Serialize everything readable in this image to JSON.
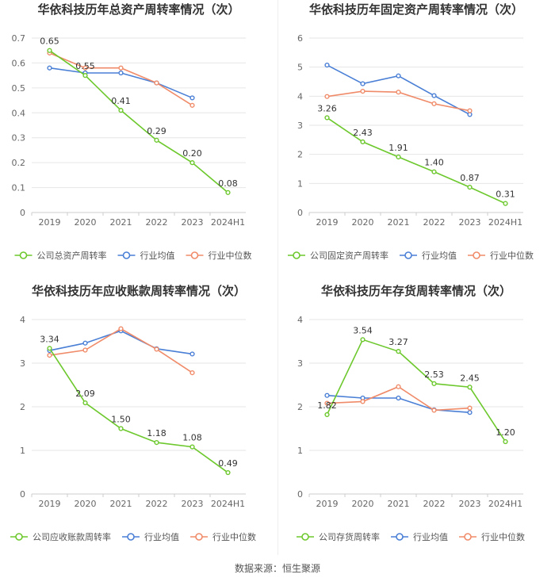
{
  "colors": {
    "company": "#6cc82c",
    "avg": "#4a7fd6",
    "median": "#f08b69",
    "grid": "#e6e6e6",
    "axis_text": "#666666",
    "title": "#333333"
  },
  "source": "数据来源：恒生聚源",
  "chart_data": [
    {
      "type": "line",
      "title": "华依科技历年总资产周转率情况（次）",
      "categories": [
        "2019",
        "2020",
        "2021",
        "2022",
        "2023",
        "2024H1"
      ],
      "ylim": [
        0,
        0.7
      ],
      "yticks": [
        "0",
        "0.1",
        "0.2",
        "0.3",
        "0.4",
        "0.5",
        "0.6",
        "0.7"
      ],
      "legend_position": "bottom",
      "grid": true,
      "series": [
        {
          "name": "公司总资产周转率",
          "role": "company",
          "values": [
            0.65,
            0.55,
            0.41,
            0.29,
            0.2,
            0.08
          ],
          "labels": [
            "0.65",
            "0.55",
            "0.41",
            "0.29",
            "0.20",
            "0.08"
          ]
        },
        {
          "name": "行业均值",
          "role": "avg",
          "values": [
            0.58,
            0.56,
            0.56,
            0.52,
            0.46,
            null
          ]
        },
        {
          "name": "行业中位数",
          "role": "median",
          "values": [
            0.64,
            0.58,
            0.58,
            0.52,
            0.43,
            null
          ]
        }
      ]
    },
    {
      "type": "line",
      "title": "华依科技历年固定资产周转率情况（次）",
      "categories": [
        "2019",
        "2020",
        "2021",
        "2022",
        "2023",
        "2024H1"
      ],
      "ylim": [
        0,
        6
      ],
      "yticks": [
        "0",
        "1",
        "2",
        "3",
        "4",
        "5",
        "6"
      ],
      "legend_position": "bottom",
      "grid": true,
      "series": [
        {
          "name": "公司固定资产周转率",
          "role": "company",
          "values": [
            3.26,
            2.43,
            1.91,
            1.4,
            0.87,
            0.31
          ],
          "labels": [
            "3.26",
            "2.43",
            "1.91",
            "1.40",
            "0.87",
            "0.31"
          ]
        },
        {
          "name": "行业均值",
          "role": "avg",
          "values": [
            5.07,
            4.43,
            4.7,
            4.02,
            3.37,
            null
          ]
        },
        {
          "name": "行业中位数",
          "role": "median",
          "values": [
            3.99,
            4.17,
            4.14,
            3.74,
            3.5,
            null
          ]
        }
      ]
    },
    {
      "type": "line",
      "title": "华依科技历年应收账款周转率情况（次）",
      "categories": [
        "2019",
        "2020",
        "2021",
        "2022",
        "2023",
        "2024H1"
      ],
      "ylim": [
        0,
        4
      ],
      "yticks": [
        "0",
        "1",
        "2",
        "3",
        "4"
      ],
      "legend_position": "bottom",
      "grid": true,
      "series": [
        {
          "name": "公司应收账款周转率",
          "role": "company",
          "values": [
            3.34,
            2.09,
            1.5,
            1.18,
            1.08,
            0.49
          ],
          "labels": [
            "3.34",
            "2.09",
            "1.50",
            "1.18",
            "1.08",
            "0.49"
          ]
        },
        {
          "name": "行业均值",
          "role": "avg",
          "values": [
            3.29,
            3.46,
            3.74,
            3.33,
            3.21,
            null
          ]
        },
        {
          "name": "行业中位数",
          "role": "median",
          "values": [
            3.18,
            3.3,
            3.79,
            3.32,
            2.78,
            null
          ]
        }
      ]
    },
    {
      "type": "line",
      "title": "华依科技历年存货周转率情况（次）",
      "categories": [
        "2019",
        "2020",
        "2021",
        "2022",
        "2023",
        "2024H1"
      ],
      "ylim": [
        0,
        4
      ],
      "yticks": [
        "0",
        "1",
        "2",
        "3",
        "4"
      ],
      "legend_position": "bottom",
      "grid": true,
      "series": [
        {
          "name": "公司存货周转率",
          "role": "company",
          "values": [
            1.82,
            3.54,
            3.27,
            2.53,
            2.45,
            1.2
          ],
          "labels": [
            "1.82",
            "3.54",
            "3.27",
            "2.53",
            "2.45",
            "1.20"
          ]
        },
        {
          "name": "行业均值",
          "role": "avg",
          "values": [
            2.26,
            2.2,
            2.2,
            1.93,
            1.87,
            null
          ]
        },
        {
          "name": "行业中位数",
          "role": "median",
          "values": [
            2.08,
            2.12,
            2.46,
            1.92,
            1.97,
            null
          ]
        }
      ]
    }
  ]
}
